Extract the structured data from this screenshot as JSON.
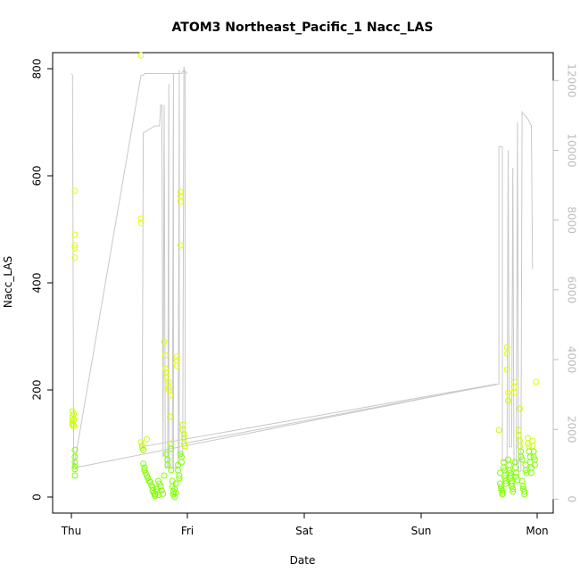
{
  "chart_data": {
    "type": "scatter",
    "title": "ATOM3 Northeast_Pacific_1 Nacc_LAS",
    "xlabel": "Date",
    "ylabel": "Nacc_LAS",
    "x_ticks": [
      "Thu",
      "Fri",
      "Sat",
      "Sun",
      "Mon"
    ],
    "xlim": [
      0,
      4.1
    ],
    "ylim": [
      -30,
      830
    ],
    "y_ticks": [
      0,
      200,
      400,
      600,
      800
    ],
    "y2lim": [
      -400,
      12800
    ],
    "y2_ticks": [
      0,
      2000,
      4000,
      6000,
      8000,
      10000,
      12000
    ],
    "grid": false,
    "colors": {
      "points_yellow": "#e6ff00",
      "points_green": "#7fff00",
      "line": "#c8c8c8",
      "right_axis": "#bdbdbd"
    },
    "series": [
      {
        "type": "scatter",
        "axis": "left",
        "points": [
          [
            0.01,
            160
          ],
          [
            0.01,
            150
          ],
          [
            0.01,
            143
          ],
          [
            0.01,
            138
          ],
          [
            0.01,
            135
          ],
          [
            0.02,
            155
          ],
          [
            0.02,
            145
          ],
          [
            0.02,
            133
          ],
          [
            0.03,
            88
          ],
          [
            0.03,
            75
          ],
          [
            0.03,
            65
          ],
          [
            0.03,
            57
          ],
          [
            0.03,
            52
          ],
          [
            0.03,
            40
          ],
          [
            0.03,
            572
          ],
          [
            0.03,
            490
          ],
          [
            0.03,
            470
          ],
          [
            0.03,
            465
          ],
          [
            0.03,
            447
          ],
          [
            0.6,
            825
          ],
          [
            0.6,
            520
          ],
          [
            0.6,
            512
          ],
          [
            0.6,
            102
          ],
          [
            0.61,
            96
          ],
          [
            0.61,
            92
          ],
          [
            0.62,
            88
          ],
          [
            0.62,
            62
          ],
          [
            0.63,
            55
          ],
          [
            0.63,
            50
          ],
          [
            0.64,
            45
          ],
          [
            0.65,
            108
          ],
          [
            0.65,
            40
          ],
          [
            0.66,
            35
          ],
          [
            0.67,
            30
          ],
          [
            0.68,
            28
          ],
          [
            0.69,
            22
          ],
          [
            0.7,
            18
          ],
          [
            0.7,
            12
          ],
          [
            0.71,
            8
          ],
          [
            0.72,
            5
          ],
          [
            0.72,
            2
          ],
          [
            0.73,
            15
          ],
          [
            0.74,
            10
          ],
          [
            0.75,
            4
          ],
          [
            0.75,
            30
          ],
          [
            0.76,
            25
          ],
          [
            0.77,
            20
          ],
          [
            0.78,
            12
          ],
          [
            0.79,
            6
          ],
          [
            0.8,
            40
          ],
          [
            0.8,
            290
          ],
          [
            0.81,
            265
          ],
          [
            0.81,
            240
          ],
          [
            0.82,
            232
          ],
          [
            0.82,
            225
          ],
          [
            0.82,
            80
          ],
          [
            0.83,
            70
          ],
          [
            0.83,
            60
          ],
          [
            0.84,
            215
          ],
          [
            0.84,
            205
          ],
          [
            0.84,
            200
          ],
          [
            0.85,
            190
          ],
          [
            0.85,
            150
          ],
          [
            0.86,
            100
          ],
          [
            0.86,
            90
          ],
          [
            0.86,
            50
          ],
          [
            0.87,
            30
          ],
          [
            0.87,
            20
          ],
          [
            0.88,
            10
          ],
          [
            0.88,
            5
          ],
          [
            0.89,
            0
          ],
          [
            0.89,
            15
          ],
          [
            0.9,
            8
          ],
          [
            0.9,
            25
          ],
          [
            0.91,
            262
          ],
          [
            0.91,
            255
          ],
          [
            0.91,
            245
          ],
          [
            0.92,
            60
          ],
          [
            0.92,
            50
          ],
          [
            0.93,
            40
          ],
          [
            0.93,
            35
          ],
          [
            0.94,
            570
          ],
          [
            0.94,
            562
          ],
          [
            0.94,
            552
          ],
          [
            0.94,
            470
          ],
          [
            0.94,
            80
          ],
          [
            0.95,
            75
          ],
          [
            0.95,
            65
          ],
          [
            0.96,
            135
          ],
          [
            0.96,
            125
          ],
          [
            0.97,
            118
          ],
          [
            0.97,
            110
          ],
          [
            0.97,
            100
          ],
          [
            0.98,
            95
          ]
        ]
      },
      {
        "type": "scatter",
        "axis": "left",
        "points": [
          [
            3.67,
            125
          ],
          [
            3.68,
            45
          ],
          [
            3.68,
            25
          ],
          [
            3.69,
            20
          ],
          [
            3.69,
            15
          ],
          [
            3.7,
            12
          ],
          [
            3.7,
            8
          ],
          [
            3.7,
            5
          ],
          [
            3.71,
            65
          ],
          [
            3.71,
            55
          ],
          [
            3.72,
            50
          ],
          [
            3.72,
            40
          ],
          [
            3.72,
            35
          ],
          [
            3.73,
            30
          ],
          [
            3.73,
            25
          ],
          [
            3.74,
            280
          ],
          [
            3.74,
            268
          ],
          [
            3.74,
            238
          ],
          [
            3.75,
            195
          ],
          [
            3.75,
            180
          ],
          [
            3.75,
            70
          ],
          [
            3.76,
            60
          ],
          [
            3.76,
            50
          ],
          [
            3.77,
            45
          ],
          [
            3.77,
            40
          ],
          [
            3.77,
            35
          ],
          [
            3.78,
            30
          ],
          [
            3.78,
            25
          ],
          [
            3.78,
            20
          ],
          [
            3.79,
            15
          ],
          [
            3.79,
            10
          ],
          [
            3.8,
            215
          ],
          [
            3.8,
            205
          ],
          [
            3.8,
            195
          ],
          [
            3.81,
            65
          ],
          [
            3.81,
            55
          ],
          [
            3.82,
            45
          ],
          [
            3.82,
            38
          ],
          [
            3.83,
            32
          ],
          [
            3.84,
            125
          ],
          [
            3.84,
            115
          ],
          [
            3.85,
            105
          ],
          [
            3.85,
            95
          ],
          [
            3.85,
            165
          ],
          [
            3.86,
            85
          ],
          [
            3.86,
            75
          ],
          [
            3.87,
            70
          ],
          [
            3.87,
            30
          ],
          [
            3.88,
            20
          ],
          [
            3.88,
            15
          ],
          [
            3.89,
            10
          ],
          [
            3.89,
            5
          ],
          [
            3.9,
            60
          ],
          [
            3.9,
            50
          ],
          [
            3.91,
            45
          ],
          [
            3.92,
            110
          ],
          [
            3.92,
            100
          ],
          [
            3.93,
            95
          ],
          [
            3.93,
            85
          ],
          [
            3.94,
            75
          ],
          [
            3.94,
            65
          ],
          [
            3.95,
            55
          ],
          [
            3.95,
            45
          ],
          [
            3.96,
            105
          ],
          [
            3.96,
            95
          ],
          [
            3.97,
            85
          ],
          [
            3.97,
            75
          ],
          [
            3.98,
            70
          ],
          [
            3.98,
            60
          ],
          [
            3.99,
            215
          ]
        ]
      },
      {
        "type": "line",
        "axis": "right",
        "points": [
          [
            0.0,
            12200
          ],
          [
            0.01,
            12100
          ],
          [
            0.02,
            900
          ],
          [
            0.6,
            12200
          ],
          [
            0.9,
            12200
          ],
          [
            0.91,
            12200
          ],
          [
            0.91,
            0
          ],
          [
            0.0,
            0
          ]
        ]
      }
    ]
  }
}
